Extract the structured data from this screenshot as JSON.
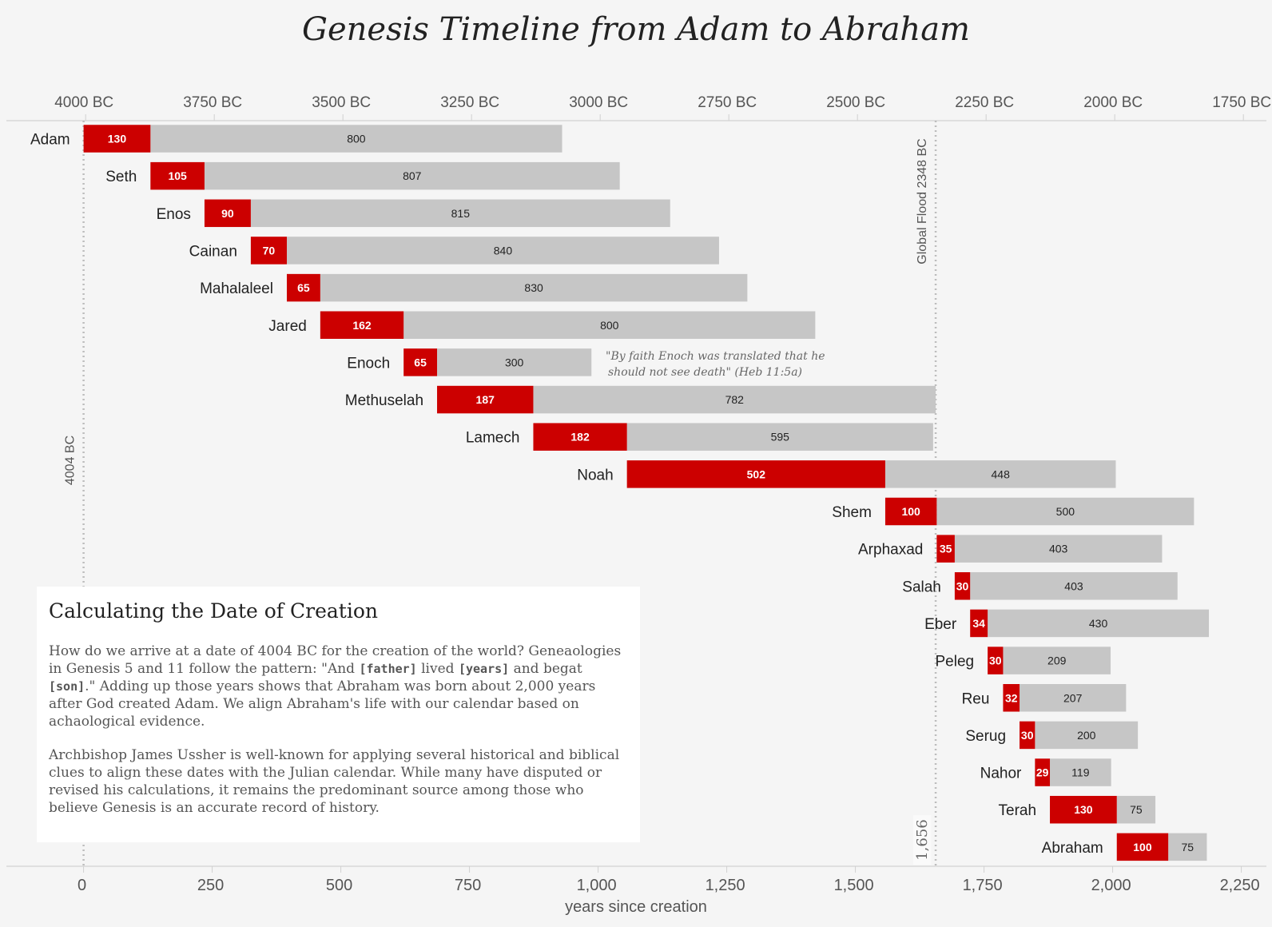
{
  "chart_data": {
    "type": "bar",
    "stacked": true,
    "orientation": "horizontal",
    "title": "Genesis Timeline from Adam to Abraham",
    "xlabel": "years since creation",
    "xlim": [
      0,
      2250
    ],
    "xticks": [
      0,
      250,
      500,
      750,
      1000,
      1250,
      1500,
      1750,
      2000,
      2250
    ],
    "xtick_labels": [
      "0",
      "250",
      "500",
      "750",
      "1,000",
      "1,250",
      "1,500",
      "1,750",
      "2,000",
      "2,250"
    ],
    "top_axis_ticks": [
      4,
      254,
      504,
      754,
      1004,
      1254,
      1504,
      1754,
      2004,
      2254
    ],
    "top_axis_labels": [
      "4000 BC",
      "3750 BC",
      "3500 BC",
      "3250 BC",
      "3000 BC",
      "2750 BC",
      "2500 BC",
      "2250 BC",
      "2000 BC",
      "1750 BC"
    ],
    "colors": {
      "age_at_son": "#cc0000",
      "remaining_years": "#c6c6c6"
    },
    "rows": [
      {
        "name": "Adam",
        "start": 0,
        "age_at_son": 130,
        "remaining": 800
      },
      {
        "name": "Seth",
        "start": 130,
        "age_at_son": 105,
        "remaining": 807
      },
      {
        "name": "Enos",
        "start": 235,
        "age_at_son": 90,
        "remaining": 815
      },
      {
        "name": "Cainan",
        "start": 325,
        "age_at_son": 70,
        "remaining": 840
      },
      {
        "name": "Mahalaleel",
        "start": 395,
        "age_at_son": 65,
        "remaining": 830
      },
      {
        "name": "Jared",
        "start": 460,
        "age_at_son": 162,
        "remaining": 800
      },
      {
        "name": "Enoch",
        "start": 622,
        "age_at_son": 65,
        "remaining": 300
      },
      {
        "name": "Methuselah",
        "start": 687,
        "age_at_son": 187,
        "remaining": 782
      },
      {
        "name": "Lamech",
        "start": 874,
        "age_at_son": 182,
        "remaining": 595
      },
      {
        "name": "Noah",
        "start": 1056,
        "age_at_son": 502,
        "remaining": 448
      },
      {
        "name": "Shem",
        "start": 1558,
        "age_at_son": 100,
        "remaining": 500
      },
      {
        "name": "Arphaxad",
        "start": 1658,
        "age_at_son": 35,
        "remaining": 403
      },
      {
        "name": "Salah",
        "start": 1693,
        "age_at_son": 30,
        "remaining": 403
      },
      {
        "name": "Eber",
        "start": 1723,
        "age_at_son": 34,
        "remaining": 430
      },
      {
        "name": "Peleg",
        "start": 1757,
        "age_at_son": 30,
        "remaining": 209
      },
      {
        "name": "Reu",
        "start": 1787,
        "age_at_son": 32,
        "remaining": 207
      },
      {
        "name": "Serug",
        "start": 1819,
        "age_at_son": 30,
        "remaining": 200
      },
      {
        "name": "Nahor",
        "start": 1849,
        "age_at_son": 29,
        "remaining": 119
      },
      {
        "name": "Terah",
        "start": 1878,
        "age_at_son": 130,
        "remaining": 75
      },
      {
        "name": "Abraham",
        "start": 2008,
        "age_at_son": 100,
        "remaining": 75
      }
    ],
    "reference_lines": [
      {
        "x": 0,
        "label": "4004 BC"
      },
      {
        "x": 1656,
        "label": "Global Flood 2348 BC",
        "bottom_label": "1,656"
      }
    ],
    "annotations": [
      {
        "near": "Enoch",
        "text_line1": "\"By faith Enoch was translated that he",
        "text_line2": "should not see death\" (Heb 11:5a)"
      }
    ]
  },
  "info_box": {
    "heading": "Calculating the Date of Creation",
    "p1_a": "How do we arrive at a date of 4004 BC for the creation of the world? Geneaologies in Genesis 5 and 11 follow the pattern: \"And ",
    "code1": "[father]",
    "p1_b": " lived ",
    "code2": "[years]",
    "p1_c": " and begat ",
    "code3": "[son]",
    "p1_d": ".\" Adding up those years shows that Abraham was born about 2,000 years after God created Adam. We align Abraham's life with our calendar based on achaological evidence.",
    "p2": "Archbishop James Ussher is well-known for applying several historical and biblical clues to align these dates with the Julian calendar. While many have disputed or revised his calculations, it remains the predominant source among those who believe Genesis is an accurate record of history."
  }
}
